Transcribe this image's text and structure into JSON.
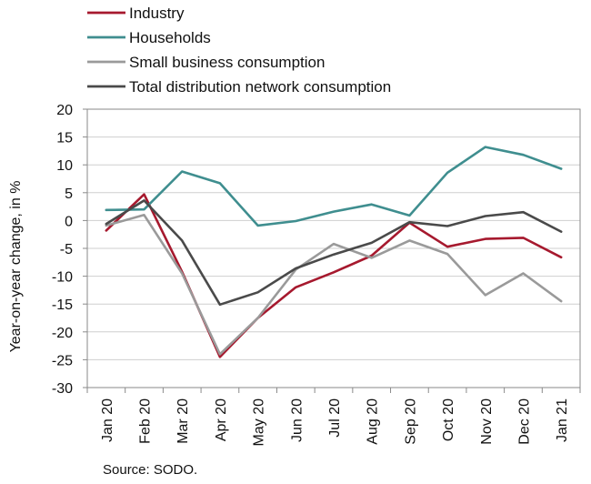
{
  "chart_data": {
    "type": "line",
    "title": "",
    "xlabel": "",
    "ylabel": "Year-on-year change, in %",
    "ylim": [
      -30,
      20
    ],
    "yticks": [
      20,
      15,
      10,
      5,
      0,
      -5,
      -10,
      -15,
      -20,
      -25,
      -30
    ],
    "ytick_labels": [
      "20",
      "15",
      "10",
      "5",
      "0",
      "-5",
      "-10",
      "-15",
      "-20",
      "-25",
      "-30"
    ],
    "grid": "horizontal",
    "legend": "top-left",
    "categories": [
      "Jan 20",
      "Feb 20",
      "Mar 20",
      "Apr 20",
      "May 20",
      "Jun 20",
      "Jul 20",
      "Aug 20",
      "Sep 20",
      "Oct 20",
      "Nov 20",
      "Dec 20",
      "Jan 21"
    ],
    "series": [
      {
        "name": "Industry",
        "color": "#a6192e",
        "values": [
          -1.8,
          4.7,
          -9.2,
          -24.5,
          -17.5,
          -12.0,
          -9.3,
          -6.3,
          -0.4,
          -4.7,
          -3.3,
          -3.1,
          -6.6
        ]
      },
      {
        "name": "Households",
        "color": "#3f8e8f",
        "values": [
          1.9,
          2.0,
          8.8,
          6.7,
          -0.9,
          -0.1,
          1.6,
          2.9,
          0.9,
          8.6,
          13.2,
          11.8,
          9.3
        ]
      },
      {
        "name": "Small business consumption",
        "color": "#9a9a9a",
        "values": [
          -0.9,
          1.0,
          -9.5,
          -24.0,
          -17.5,
          -8.8,
          -4.2,
          -6.7,
          -3.6,
          -6.0,
          -13.4,
          -9.5,
          -14.5
        ]
      },
      {
        "name": "Total distribution network consumption",
        "color": "#4a4a4a",
        "values": [
          -0.6,
          3.6,
          -3.6,
          -15.1,
          -12.9,
          -8.6,
          -6.1,
          -4.0,
          -0.3,
          -1.0,
          0.8,
          1.5,
          -2.0
        ]
      }
    ],
    "source": "Source: SODO."
  }
}
